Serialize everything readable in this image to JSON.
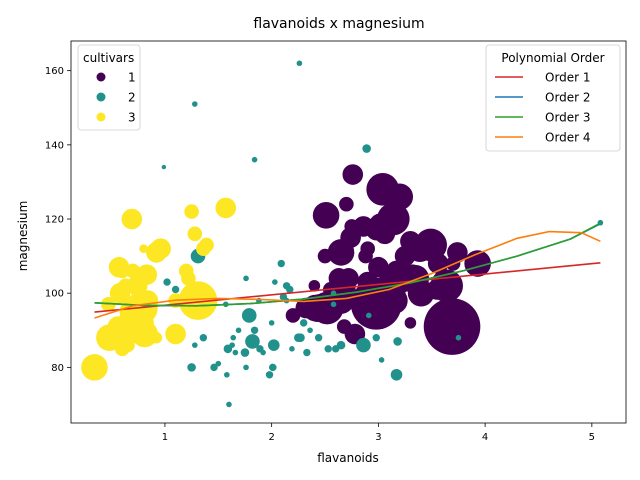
{
  "chart_data": {
    "type": "scatter",
    "title": "flavanoids x magnesium",
    "xlabel": "flavanoids",
    "ylabel": "magnesium",
    "xlim": [
      0.12,
      5.32
    ],
    "ylim": [
      65,
      168
    ],
    "xticks": [
      1,
      2,
      3,
      4,
      5
    ],
    "yticks": [
      80,
      100,
      120,
      140,
      160
    ],
    "hue_legend": {
      "title": "cultivars",
      "placement": "top-left",
      "entries": [
        {
          "label": "1",
          "color": "#440154"
        },
        {
          "label": "2",
          "color": "#21918c"
        },
        {
          "label": "3",
          "color": "#fde725"
        }
      ]
    },
    "line_legend": {
      "title": "Polynomial Order",
      "placement": "top-right",
      "entries": [
        {
          "label": "Order 1",
          "color": "#d62728"
        },
        {
          "label": "Order 2",
          "color": "#1f77b4"
        },
        {
          "label": "Order 3",
          "color": "#2ca02c"
        },
        {
          "label": "Order 4",
          "color": "#ff7f0e"
        }
      ]
    },
    "series": [
      {
        "name": "1",
        "color": "#440154",
        "points": [
          [
            3.69,
            91,
            9
          ],
          [
            2.98,
            97,
            8
          ],
          [
            3.04,
            128,
            5
          ],
          [
            2.51,
            121,
            4
          ],
          [
            2.65,
            111,
            4
          ],
          [
            3.14,
            120,
            5
          ],
          [
            3.2,
            126,
            4
          ],
          [
            2.76,
            132,
            3
          ],
          [
            3.49,
            113,
            5
          ],
          [
            3.39,
            112,
            4
          ],
          [
            3.64,
            102,
            5
          ],
          [
            3.93,
            108,
            4
          ],
          [
            3.03,
            118,
            4
          ],
          [
            2.41,
            96,
            4
          ],
          [
            2.52,
            96,
            5
          ],
          [
            2.63,
            104,
            3
          ],
          [
            2.88,
            110,
            2
          ],
          [
            3.06,
            116,
            3
          ],
          [
            3.17,
            106,
            3
          ],
          [
            3.1,
            103,
            3
          ],
          [
            3.0,
            107,
            3
          ],
          [
            2.9,
            103,
            3
          ],
          [
            2.68,
            91,
            2
          ],
          [
            2.78,
            89,
            3
          ],
          [
            2.86,
            118,
            3
          ],
          [
            3.32,
            105,
            3
          ],
          [
            3.56,
            108,
            3
          ],
          [
            3.74,
            111,
            3
          ],
          [
            2.74,
            115,
            3
          ],
          [
            2.98,
            117,
            3
          ],
          [
            3.27,
            104,
            4
          ],
          [
            2.69,
            101,
            3
          ],
          [
            2.5,
            110,
            2
          ],
          [
            2.61,
            102,
            2
          ],
          [
            3.15,
            98,
            4
          ],
          [
            3.4,
            100,
            4
          ],
          [
            2.32,
            96,
            3
          ],
          [
            2.43,
            95,
            3
          ],
          [
            2.55,
            101,
            2
          ],
          [
            2.7,
            124,
            2
          ],
          [
            2.9,
            112,
            2
          ],
          [
            3.1,
            100,
            5
          ],
          [
            3.3,
            114,
            3
          ],
          [
            3.25,
            110,
            3
          ],
          [
            3.55,
            101,
            3
          ],
          [
            2.9,
            98,
            4
          ],
          [
            2.98,
            95,
            5
          ],
          [
            3.35,
            104,
            4
          ],
          [
            2.65,
            98,
            4
          ],
          [
            2.55,
            101,
            2
          ],
          [
            2.72,
            104,
            3
          ],
          [
            2.45,
            97,
            3
          ],
          [
            3.0,
            94,
            4
          ],
          [
            3.7,
            108,
            2
          ],
          [
            2.2,
            94,
            2
          ],
          [
            2.4,
            102,
            1.5
          ],
          [
            2.75,
            118,
            2
          ],
          [
            3.4,
            101,
            3
          ],
          [
            3.02,
            99,
            6
          ],
          [
            3.3,
            92,
            1.5
          ],
          [
            3.18,
            102,
            3
          ]
        ]
      },
      {
        "name": "2",
        "color": "#21918c",
        "points": [
          [
            2.26,
            162,
            0.5
          ],
          [
            1.28,
            151,
            0.5
          ],
          [
            2.89,
            139,
            1
          ],
          [
            1.84,
            136,
            0.5
          ],
          [
            0.99,
            134,
            0.3
          ],
          [
            1.31,
            110,
            2
          ],
          [
            1.35,
            112,
            0.5
          ],
          [
            2.09,
            108,
            0.8
          ],
          [
            1.02,
            103,
            0.8
          ],
          [
            2.03,
            103,
            0.5
          ],
          [
            1.76,
            104,
            0.5
          ],
          [
            1.41,
            100,
            0.8
          ],
          [
            1.88,
            98,
            0.5
          ],
          [
            2.14,
            98,
            0.5
          ],
          [
            2.17,
            101,
            0.8
          ],
          [
            2.14,
            102,
            0.8
          ],
          [
            2.6,
            85,
            0.8
          ],
          [
            2.27,
            88,
            1
          ],
          [
            1.79,
            94,
            2
          ],
          [
            2.0,
            92,
            0.5
          ],
          [
            2.86,
            86,
            2
          ],
          [
            2.65,
            86,
            1
          ],
          [
            2.53,
            85,
            0.8
          ],
          [
            2.44,
            88,
            0.8
          ],
          [
            2.36,
            90,
            0.5
          ],
          [
            2.25,
            88,
            1
          ],
          [
            1.84,
            90,
            0.8
          ],
          [
            1.89,
            85,
            0.8
          ],
          [
            1.79,
            87,
            0.5
          ],
          [
            2.01,
            80,
            0.8
          ],
          [
            2.02,
            86,
            1.5
          ],
          [
            1.82,
            87,
            2
          ],
          [
            1.75,
            84,
            1
          ],
          [
            1.59,
            85,
            1
          ],
          [
            1.59,
            85,
            0.8
          ],
          [
            1.64,
            88,
            0.5
          ],
          [
            1.69,
            90,
            0.5
          ],
          [
            1.76,
            80,
            0.5
          ],
          [
            1.66,
            84,
            0.5
          ],
          [
            1.58,
            78,
            0.5
          ],
          [
            1.6,
            70,
            0.5
          ],
          [
            1.5,
            81,
            0.5
          ],
          [
            1.28,
            86,
            0.5
          ],
          [
            1.25,
            80,
            1
          ],
          [
            1.1,
            101,
            0.8
          ],
          [
            1.36,
            88,
            0.8
          ],
          [
            1.39,
            100,
            1
          ],
          [
            1.46,
            80,
            0.8
          ],
          [
            1.57,
            97,
            0.5
          ],
          [
            1.98,
            78,
            0.8
          ],
          [
            2.33,
            84,
            0.8
          ],
          [
            3.03,
            82,
            0.5
          ],
          [
            3.18,
            87,
            1
          ],
          [
            3.17,
            78,
            1.5
          ],
          [
            3.75,
            88,
            0.5
          ],
          [
            5.08,
            119,
            0.5
          ],
          [
            2.58,
            100,
            0.5
          ],
          [
            2.98,
            88,
            0.8
          ],
          [
            2.11,
            99,
            0.8
          ],
          [
            2.91,
            94,
            0.5
          ],
          [
            2.3,
            92,
            0.8
          ],
          [
            2.19,
            85,
            0.5
          ],
          [
            2.58,
            97,
            0.5
          ],
          [
            2.02,
            80,
            0.5
          ],
          [
            1.92,
            84,
            0.5
          ],
          [
            1.63,
            86,
            0.5
          ]
        ]
      },
      {
        "name": "3",
        "color": "#fde725",
        "points": [
          [
            0.34,
            80,
            4
          ],
          [
            0.48,
            88,
            4
          ],
          [
            0.51,
            88,
            3
          ],
          [
            0.56,
            91,
            3
          ],
          [
            0.61,
            89,
            2
          ],
          [
            0.66,
            92,
            3
          ],
          [
            0.69,
            91,
            5
          ],
          [
            0.7,
            95,
            4
          ],
          [
            0.75,
            90,
            3
          ],
          [
            0.76,
            93,
            3
          ],
          [
            0.78,
            96,
            5
          ],
          [
            0.8,
            92,
            3
          ],
          [
            0.81,
            89,
            4
          ],
          [
            0.84,
            98,
            3
          ],
          [
            0.58,
            100,
            3
          ],
          [
            0.63,
            102,
            2
          ],
          [
            0.65,
            86,
            2
          ],
          [
            0.47,
            97,
            2
          ],
          [
            0.52,
            88,
            2
          ],
          [
            0.6,
            85,
            2
          ],
          [
            0.57,
            107,
            3
          ],
          [
            0.6,
            106,
            2
          ],
          [
            0.7,
            106,
            2
          ],
          [
            0.8,
            112,
            1
          ],
          [
            0.92,
            111,
            3
          ],
          [
            0.96,
            112,
            3
          ],
          [
            0.69,
            120,
            3
          ],
          [
            0.83,
            105,
            3
          ],
          [
            1.1,
            89,
            3
          ],
          [
            1.31,
            98,
            6
          ],
          [
            1.25,
            122,
            2
          ],
          [
            1.28,
            116,
            2
          ],
          [
            1.57,
            123,
            3
          ],
          [
            1.39,
            113,
            2
          ],
          [
            1.36,
            112,
            2
          ],
          [
            1.2,
            106,
            2
          ],
          [
            1.22,
            104,
            2
          ],
          [
            0.74,
            102,
            3
          ],
          [
            1.1,
            98,
            2
          ],
          [
            0.92,
            88,
            1.5
          ]
        ]
      }
    ],
    "fit_lines": [
      {
        "name": "Order 1",
        "color": "#d62728",
        "x": [
          0.34,
          5.08
        ],
        "y": [
          94.9,
          108.2
        ]
      },
      {
        "name": "Order 2",
        "color": "#1f77b4",
        "x": [
          0.34,
          0.8,
          1.3,
          1.8,
          2.3,
          2.8,
          3.3,
          3.8,
          4.3,
          4.8,
          5.08
        ],
        "y": [
          97.4,
          96.7,
          96.6,
          97.2,
          98.4,
          100.3,
          102.8,
          106.1,
          110.0,
          114.6,
          118.7
        ]
      },
      {
        "name": "Order 3",
        "color": "#2ca02c",
        "x": [
          0.34,
          0.8,
          1.3,
          1.8,
          2.3,
          2.8,
          3.3,
          3.8,
          4.3,
          4.8,
          5.08
        ],
        "y": [
          97.4,
          96.7,
          96.6,
          97.2,
          98.4,
          100.3,
          102.8,
          106.1,
          110.0,
          114.6,
          118.9
        ]
      },
      {
        "name": "Order 4",
        "color": "#ff7f0e",
        "x": [
          0.34,
          0.7,
          1.1,
          1.5,
          1.9,
          2.3,
          2.7,
          3.1,
          3.5,
          3.9,
          4.3,
          4.6,
          4.9,
          5.08
        ],
        "y": [
          93.3,
          96.6,
          98.1,
          98.6,
          98.3,
          97.8,
          98.6,
          101.0,
          105.3,
          110.3,
          114.8,
          116.6,
          116.3,
          114.0
        ]
      }
    ]
  }
}
